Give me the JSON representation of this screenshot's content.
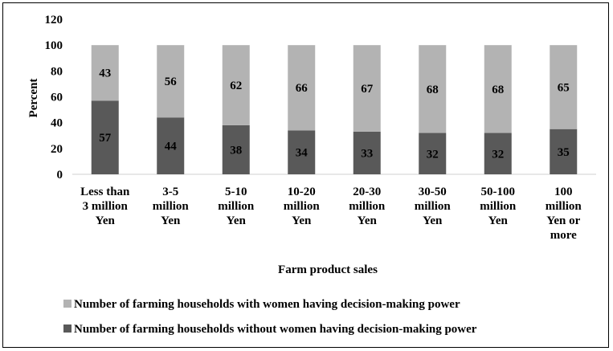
{
  "chart_data": {
    "type": "bar",
    "stacked": true,
    "xlabel": "Farm product sales",
    "ylabel": "Percent",
    "ylim": [
      0,
      120
    ],
    "yticks": [
      0,
      20,
      40,
      60,
      80,
      100,
      120
    ],
    "grid": false,
    "legend_position": "bottom",
    "categories": [
      [
        "Less than",
        "3 million",
        "Yen"
      ],
      [
        "3-5",
        "million",
        "Yen"
      ],
      [
        "5-10",
        "million",
        "Yen"
      ],
      [
        "10-20",
        "million",
        "Yen"
      ],
      [
        "20-30",
        "million",
        "Yen"
      ],
      [
        "30-50",
        "million",
        "Yen"
      ],
      [
        "50-100",
        "million",
        "Yen"
      ],
      [
        "100",
        "million",
        "Yen or",
        "more"
      ]
    ],
    "series": [
      {
        "name": "Number of farming households without women having decision-making power",
        "color": "#595959",
        "values": [
          57,
          44,
          38,
          34,
          33,
          32,
          32,
          35
        ]
      },
      {
        "name": "Number of farming households with women having decision-making power",
        "color": "#b3b3b3",
        "values": [
          43,
          56,
          62,
          66,
          67,
          68,
          68,
          65
        ]
      }
    ],
    "legend_order": [
      1,
      0
    ]
  }
}
